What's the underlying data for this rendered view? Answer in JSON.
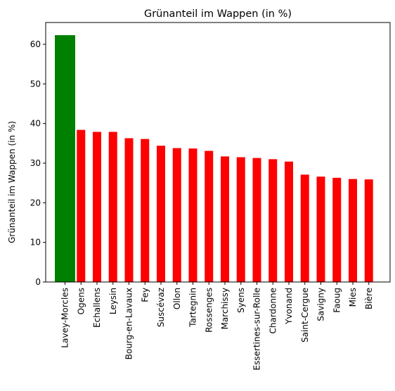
{
  "chart_data": {
    "type": "bar",
    "title": "Grünanteil im Wappen (in %)",
    "xlabel": "",
    "ylabel": "Grünanteil im Wappen (in %)",
    "ylim": [
      0,
      65.5
    ],
    "yticks": [
      0,
      10,
      20,
      30,
      40,
      50,
      60
    ],
    "grid": false,
    "categories": [
      "Lavey-Morcles",
      "Ogens",
      "Echallens",
      "Leysin",
      "Bourg-en-Lavaux",
      "Fey",
      "Suscévaz",
      "Ollon",
      "Tartegnin",
      "Rossenges",
      "Marchissy",
      "Syens",
      "Essertines-sur-Rolle",
      "Chardonne",
      "Yvonand",
      "Saint-Cergue",
      "Savigny",
      "Faoug",
      "Mies",
      "Bière"
    ],
    "values": [
      62.3,
      38.4,
      37.9,
      37.9,
      36.3,
      36.1,
      34.4,
      33.8,
      33.7,
      33.1,
      31.7,
      31.5,
      31.3,
      31.0,
      30.4,
      27.1,
      26.6,
      26.3,
      26.0,
      25.9
    ],
    "colors": [
      "#008000",
      "#ff0000"
    ],
    "highlight_index": 0
  }
}
